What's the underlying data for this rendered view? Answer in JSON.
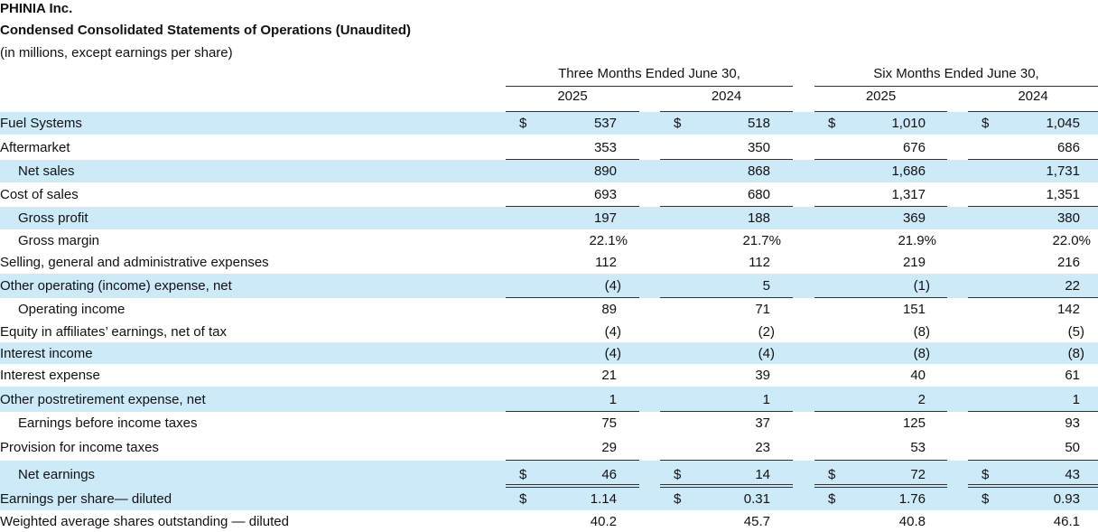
{
  "title": "PHINIA Inc.",
  "subtitle": "Condensed Consolidated Statements of Operations (Unaudited)",
  "note": "(in millions, except earnings per share)",
  "column_groups": [
    {
      "label": "Three Months Ended June 30,",
      "years": [
        "2025",
        "2024"
      ]
    },
    {
      "label": "Six Months Ended June 30,",
      "years": [
        "2025",
        "2024"
      ]
    }
  ],
  "rows": [
    {
      "label": "Fuel Systems",
      "currency": "$",
      "values": [
        "537",
        "518",
        "1,010",
        "1,045"
      ]
    },
    {
      "label": "Aftermarket",
      "values": [
        "353",
        "350",
        "676",
        "686"
      ]
    },
    {
      "label": "Net sales",
      "values": [
        "890",
        "868",
        "1,686",
        "1,731"
      ]
    },
    {
      "label": "Cost of sales",
      "values": [
        "693",
        "680",
        "1,317",
        "1,351"
      ]
    },
    {
      "label": "Gross profit",
      "values": [
        "197",
        "188",
        "369",
        "380"
      ]
    },
    {
      "label": "Gross margin",
      "values": [
        "22.1%",
        "21.7%",
        "21.9%",
        "22.0%"
      ]
    },
    {
      "label": "Selling, general and administrative expenses",
      "values": [
        "112",
        "112",
        "219",
        "216"
      ]
    },
    {
      "label": "Other operating (income) expense, net",
      "values": [
        "(4)",
        "5",
        "(1)",
        "22"
      ]
    },
    {
      "label": "Operating income",
      "values": [
        "89",
        "71",
        "151",
        "142"
      ]
    },
    {
      "label": "Equity in affiliates’ earnings, net of tax",
      "values": [
        "(4)",
        "(2)",
        "(8)",
        "(5)"
      ]
    },
    {
      "label": "Interest income",
      "values": [
        "(4)",
        "(4)",
        "(8)",
        "(8)"
      ]
    },
    {
      "label": "Interest expense",
      "values": [
        "21",
        "39",
        "40",
        "61"
      ]
    },
    {
      "label": "Other postretirement expense, net",
      "values": [
        "1",
        "1",
        "2",
        "1"
      ]
    },
    {
      "label": "Earnings before income taxes",
      "values": [
        "75",
        "37",
        "125",
        "93"
      ]
    },
    {
      "label": "Provision for income taxes",
      "values": [
        "29",
        "23",
        "53",
        "50"
      ]
    },
    {
      "label": "Net earnings",
      "currency": "$",
      "values": [
        "46",
        "14",
        "72",
        "43"
      ]
    },
    {
      "label": "Earnings per share— diluted",
      "currency": "$",
      "values": [
        "1.14",
        "0.31",
        "1.76",
        "0.93"
      ]
    },
    {
      "label": "Weighted average shares outstanding — diluted",
      "values": [
        "40.2",
        "45.7",
        "40.8",
        "46.1"
      ]
    }
  ]
}
